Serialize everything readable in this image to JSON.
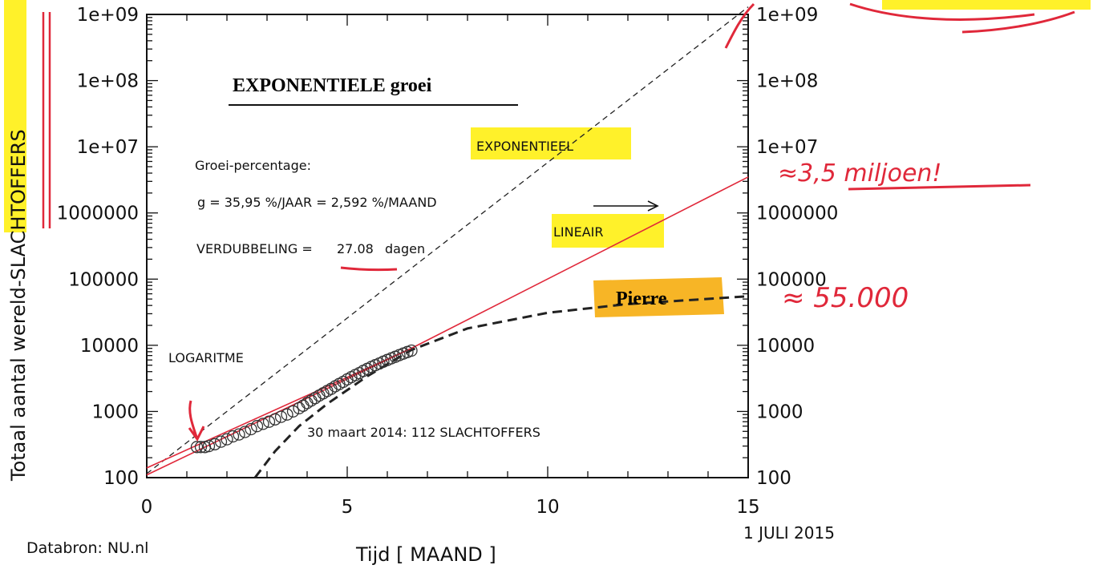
{
  "chart_data": {
    "type": "scatter",
    "title": "EXPONENTIELE groei",
    "xlabel": "Tijd [ MAAND ]",
    "ylabel_prefix": "Totaal aantal wereld-",
    "ylabel_highlight": "SLACHTOFFERS",
    "x_scale": "linear",
    "y_scale": "log",
    "xlim": [
      0,
      15
    ],
    "ylim": [
      100,
      1000000000
    ],
    "x_ticks": [
      "0",
      "5",
      "10",
      "15"
    ],
    "x_tick_values": [
      0,
      5,
      10,
      15
    ],
    "y_ticks": [
      "100",
      "1000",
      "10000",
      "100000",
      "1000000",
      "1e+07",
      "1e+08",
      "1e+09"
    ],
    "y_tick_values": [
      100,
      1000,
      10000,
      100000,
      1000000,
      10000000,
      100000000,
      1000000000
    ],
    "x_end_label": "1 JULI 2015",
    "source": "Databron: NU.nl",
    "grid": false,
    "points": {
      "x": [
        1.25,
        1.35,
        1.45,
        1.55,
        1.7,
        1.85,
        2.0,
        2.15,
        2.3,
        2.45,
        2.6,
        2.75,
        2.9,
        3.05,
        3.2,
        3.35,
        3.5,
        3.65,
        3.8,
        3.9,
        4.0,
        4.1,
        4.2,
        4.3,
        4.4,
        4.5,
        4.6,
        4.7,
        4.8,
        4.9,
        5.0,
        5.1,
        5.2,
        5.3,
        5.4,
        5.5,
        5.6,
        5.7,
        5.8,
        5.9,
        6.0,
        6.1,
        6.2,
        6.3,
        6.4,
        6.5,
        6.6
      ],
      "y": [
        290,
        290,
        290,
        300,
        320,
        350,
        380,
        420,
        450,
        490,
        540,
        600,
        650,
        700,
        760,
        830,
        900,
        1000,
        1120,
        1220,
        1340,
        1460,
        1590,
        1740,
        1880,
        2040,
        2200,
        2400,
        2600,
        2800,
        3050,
        3300,
        3550,
        3800,
        4100,
        4400,
        4700,
        5000,
        5300,
        5650,
        6000,
        6350,
        6700,
        7100,
        7500,
        7900,
        8300
      ]
    },
    "series": [
      {
        "name": "EXPONENTIEEL",
        "color": "#222222",
        "style": "dashed-thin",
        "x": [
          0,
          15
        ],
        "y": [
          115,
          1300000000
        ]
      },
      {
        "name": "LINEAIR",
        "color": "#e0283a",
        "style": "solid",
        "x": [
          0,
          6.6,
          15
        ],
        "y": [
          110,
          9000,
          3500000
        ]
      },
      {
        "name": "Pierre",
        "color": "#222222",
        "style": "dashed-thick",
        "x": [
          2.7,
          3.2,
          3.8,
          4.5,
          5.5,
          6.6,
          8,
          10,
          12,
          15
        ],
        "y": [
          100,
          250,
          600,
          1300,
          3400,
          8500,
          18000,
          31000,
          42000,
          55000
        ]
      },
      {
        "name": "LOGARITME",
        "color": "#e0283a",
        "style": "solid",
        "x": [
          0,
          6.6
        ],
        "y": [
          140,
          9000
        ]
      }
    ],
    "annotations": {
      "groei_label": "Groei-percentage:",
      "growth_formula": "g = 35,95 %/JAAR = 2,592 %/MAAND",
      "doubling_prefix": "VERDUBBELING =",
      "doubling_value": "27.08",
      "doubling_suffix": "dagen",
      "start_note": "30 maart 2014: 112 SLACHTOFFERS",
      "label_exponentieel": "EXPONENTIEEL",
      "label_lineair": "LINEAIR",
      "label_pierre": "Pierre",
      "label_logaritme": "LOGARITME",
      "hand_lineair": "≈3,5 miljoen!",
      "hand_pierre": "≈ 55.000"
    },
    "colors": {
      "red": "#e0283a",
      "yellow": "#fff12a",
      "orange": "#f7b526"
    }
  }
}
